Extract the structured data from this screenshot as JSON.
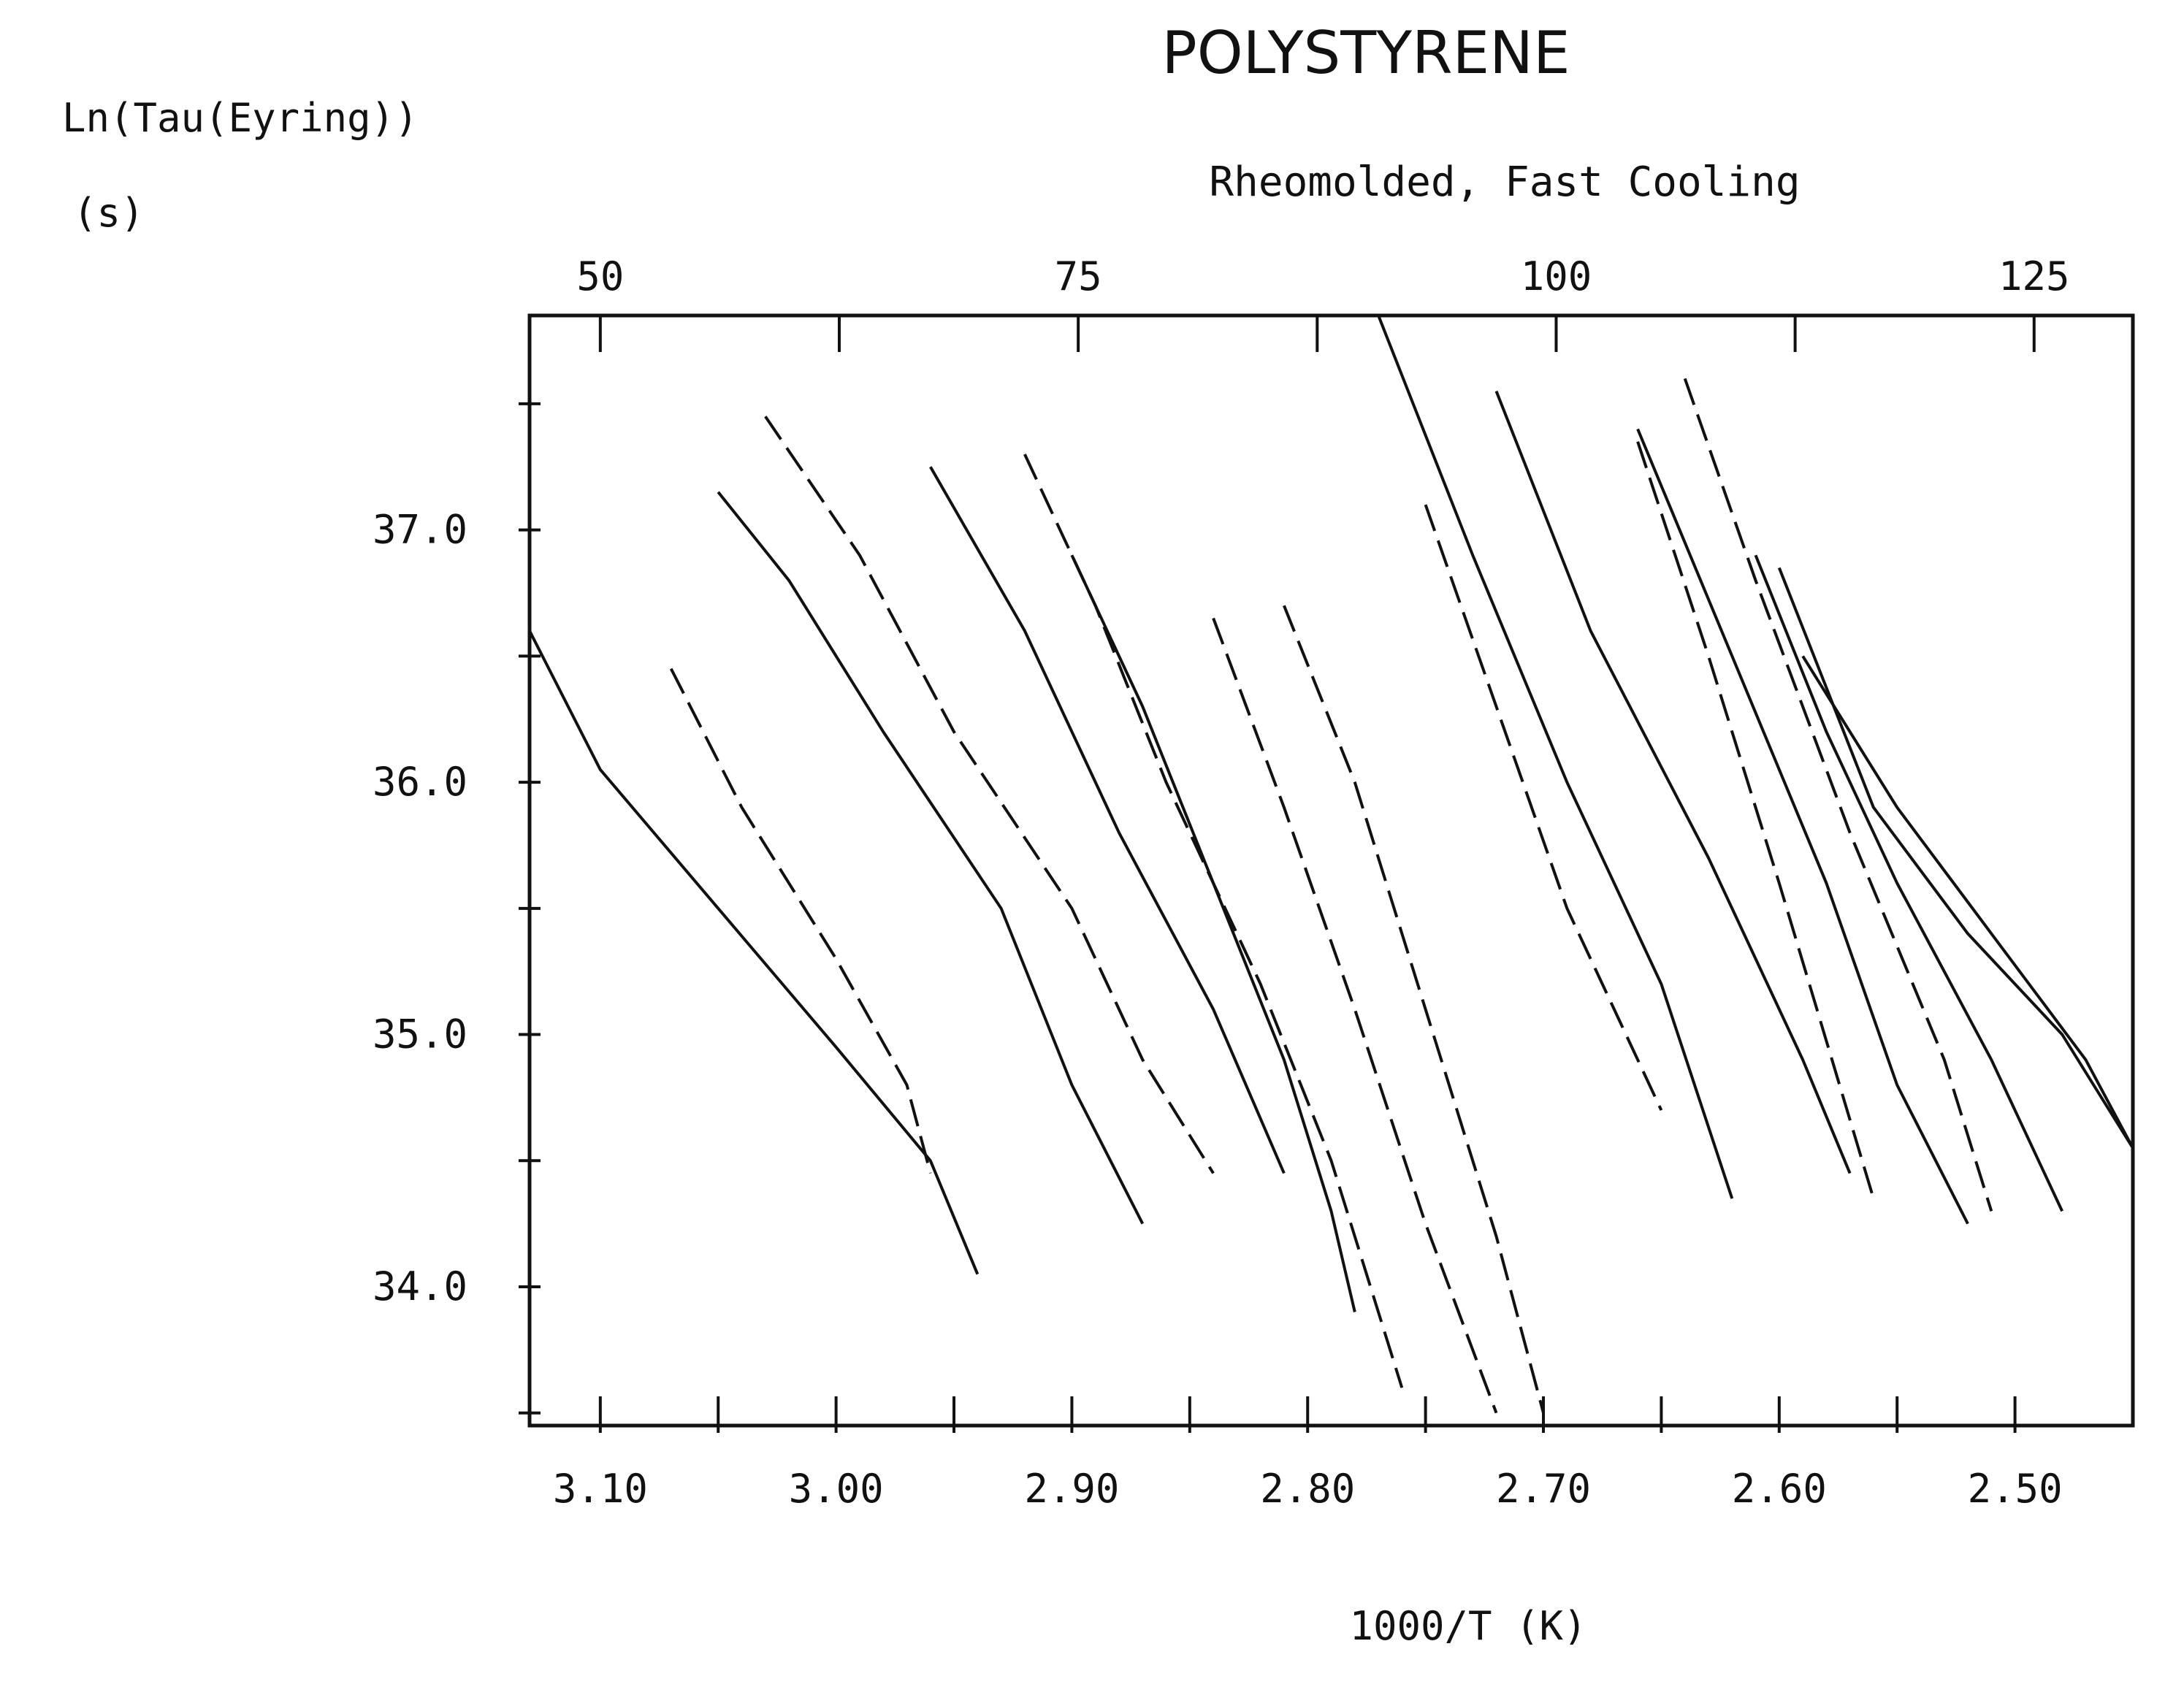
{
  "chart_data": {
    "type": "line",
    "title": "POLYSTYRENE",
    "subtitle": "Rheomolded, Fast Cooling",
    "ylabel": "Ln(Tau(Eyring))",
    "ylabel_unit": "(s)",
    "xlabel": "1000/T  (K)",
    "x_axis_reversed": true,
    "xlim": [
      3.13,
      2.45
    ],
    "ylim": [
      33.45,
      37.85
    ],
    "xticks": [
      3.1,
      3.0,
      2.9,
      2.8,
      2.7,
      2.6,
      2.5
    ],
    "xtick_labels": [
      "3.10",
      "3.00",
      "2.90",
      "2.80",
      "2.70",
      "2.60",
      "2.50"
    ],
    "yticks": [
      34.0,
      35.0,
      36.0,
      37.0
    ],
    "ytick_labels": [
      "34.0",
      "35.0",
      "36.0",
      "37.0"
    ],
    "top_axis_ticks": [
      50,
      75,
      100,
      125
    ],
    "top_axis_tick_labels": [
      "50",
      "75",
      "100",
      "125"
    ],
    "grid": false,
    "legend": "none",
    "line_color": "#111111",
    "series": [
      {
        "x": [
          3.13,
          3.1,
          3.05,
          3.0,
          2.96,
          2.94
        ],
        "y": [
          36.6,
          36.05,
          35.5,
          34.95,
          34.5,
          34.05
        ],
        "dash": "solid"
      },
      {
        "x": [
          3.07,
          3.04,
          3.0,
          2.97,
          2.96
        ],
        "y": [
          36.45,
          35.9,
          35.3,
          34.8,
          34.45
        ],
        "dash": "dashed"
      },
      {
        "x": [
          3.05,
          3.02,
          2.98,
          2.93,
          2.9,
          2.87
        ],
        "y": [
          37.15,
          36.8,
          36.2,
          35.5,
          34.8,
          34.25
        ],
        "dash": "solid"
      },
      {
        "x": [
          3.03,
          2.99,
          2.95,
          2.9,
          2.87,
          2.84
        ],
        "y": [
          37.45,
          36.9,
          36.2,
          35.5,
          34.9,
          34.45
        ],
        "dash": "dashed"
      },
      {
        "x": [
          2.96,
          2.92,
          2.88,
          2.84,
          2.81
        ],
        "y": [
          37.25,
          36.6,
          35.8,
          35.1,
          34.45
        ],
        "dash": "solid"
      },
      {
        "x": [
          2.92,
          2.89,
          2.86,
          2.82,
          2.79,
          2.76
        ],
        "y": [
          37.3,
          36.7,
          36.0,
          35.2,
          34.5,
          33.6
        ],
        "dash": "dashed"
      },
      {
        "x": [
          2.9,
          2.87,
          2.84,
          2.81,
          2.79,
          2.78
        ],
        "y": [
          36.9,
          36.3,
          35.6,
          34.9,
          34.3,
          33.9
        ],
        "dash": "solid"
      },
      {
        "x": [
          2.84,
          2.81,
          2.78,
          2.75,
          2.72
        ],
        "y": [
          36.65,
          35.9,
          35.1,
          34.25,
          33.5
        ],
        "dash": "dashed"
      },
      {
        "x": [
          2.81,
          2.78,
          2.75,
          2.72,
          2.7
        ],
        "y": [
          36.7,
          36.0,
          35.1,
          34.2,
          33.5
        ],
        "dash": "dashed"
      },
      {
        "x": [
          2.77,
          2.73,
          2.69,
          2.65,
          2.62
        ],
        "y": [
          37.85,
          36.9,
          36.0,
          35.2,
          34.35
        ],
        "dash": "solid"
      },
      {
        "x": [
          2.75,
          2.72,
          2.69,
          2.65
        ],
        "y": [
          37.1,
          36.3,
          35.5,
          34.7
        ],
        "dash": "dashed"
      },
      {
        "x": [
          2.72,
          2.68,
          2.63,
          2.59,
          2.57
        ],
        "y": [
          37.55,
          36.6,
          35.7,
          34.9,
          34.45
        ],
        "dash": "solid"
      },
      {
        "x": [
          2.66,
          2.63,
          2.6,
          2.56
        ],
        "y": [
          37.35,
          36.5,
          35.6,
          34.35
        ],
        "dash": "dashed"
      },
      {
        "x": [
          2.66,
          2.62,
          2.58,
          2.55,
          2.52
        ],
        "y": [
          37.4,
          36.5,
          35.6,
          34.8,
          34.25
        ],
        "dash": "solid"
      },
      {
        "x": [
          2.64,
          2.61,
          2.57,
          2.53,
          2.51
        ],
        "y": [
          37.6,
          36.8,
          35.8,
          34.9,
          34.3
        ],
        "dash": "dashed"
      },
      {
        "x": [
          2.61,
          2.58,
          2.55,
          2.51,
          2.48
        ],
        "y": [
          36.9,
          36.2,
          35.6,
          34.9,
          34.3
        ],
        "dash": "solid"
      },
      {
        "x": [
          2.6,
          2.56,
          2.52,
          2.48,
          2.45
        ],
        "y": [
          36.85,
          35.9,
          35.4,
          35.0,
          34.55
        ],
        "dash": "solid"
      },
      {
        "x": [
          2.59,
          2.55,
          2.51,
          2.47,
          2.45
        ],
        "y": [
          36.5,
          35.9,
          35.4,
          34.9,
          34.55
        ],
        "dash": "solid"
      }
    ]
  }
}
